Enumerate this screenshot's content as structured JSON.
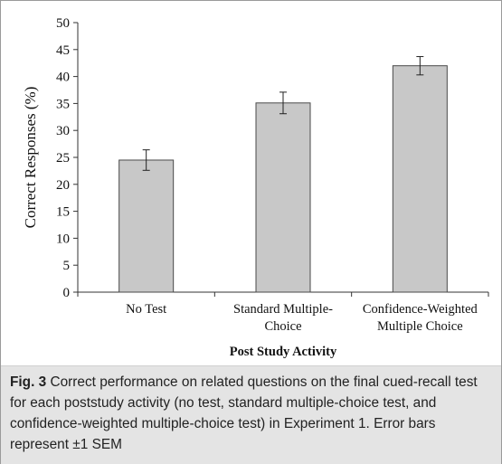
{
  "chart_data": {
    "type": "bar",
    "categories": [
      [
        "No Test"
      ],
      [
        "Standard Multiple-",
        "Choice"
      ],
      [
        "Confidence-Weighted",
        "Multiple Choice"
      ]
    ],
    "values": [
      24.5,
      35.1,
      42.0
    ],
    "error_sem": [
      1.9,
      2.0,
      1.7
    ],
    "title": "",
    "xlabel": "Post Study Activity",
    "ylabel": "Correct Responses (%)",
    "ylim": [
      0,
      50
    ],
    "yticks": [
      0,
      5,
      10,
      15,
      20,
      25,
      30,
      35,
      40,
      45,
      50
    ],
    "grid": false,
    "colors": {
      "bar_fill": "#c8c8c8",
      "bar_stroke": "#4a4a4a",
      "axis": "#333333"
    }
  },
  "caption": {
    "label": "Fig. 3",
    "text": " Correct performance on related questions on the final cued-recall test for each poststudy activity (no test, standard multiple-choice test, and confidence-weighted multiple-choice test) in Experiment 1. Error bars represent ±1 SEM"
  }
}
